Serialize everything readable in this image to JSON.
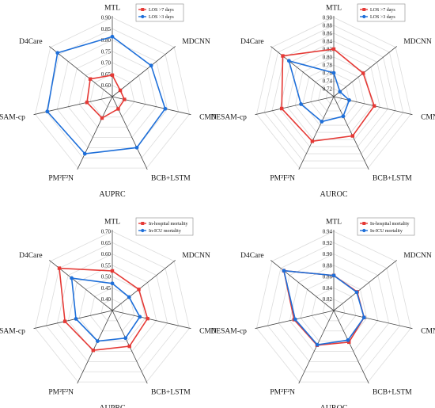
{
  "colors": {
    "red": "#e53935",
    "blue": "#1e6fd9",
    "grid": "#dcdcdc",
    "axis": "#444444"
  },
  "chart_data": [
    {
      "type": "radar",
      "title": "AUPRC",
      "axes": [
        "MTL",
        "MDCNN",
        "CMN",
        "BCB+LSTM",
        "PM²F²N",
        "DESAM-cp",
        "D4Care"
      ],
      "r_ticks": [
        "0.60",
        "0.65",
        "0.70",
        "0.75",
        "0.80",
        "0.85",
        "0.90"
      ],
      "r_range": [
        0.55,
        0.9
      ],
      "grid": true,
      "legend_position": "top-right",
      "series": [
        {
          "name": "LOS >7 days",
          "color": "#e53935",
          "values": [
            0.645,
            0.595,
            0.605,
            0.61,
            0.655,
            0.665,
            0.675
          ]
        },
        {
          "name": "LOS >3 days",
          "color": "#1e6fd9",
          "values": [
            0.815,
            0.77,
            0.79,
            0.8,
            0.83,
            0.845,
            0.86
          ]
        }
      ]
    },
    {
      "type": "radar",
      "title": "AUROC",
      "axes": [
        "MTL",
        "MDCNN",
        "CMN",
        "BCB+LSTM",
        "PM²F²N",
        "DESAM-cp",
        "D4Care"
      ],
      "r_ticks": [
        "0.72",
        "0.74",
        "0.76",
        "0.78",
        "0.80",
        "0.82",
        "0.84",
        "0.86",
        "0.88",
        "0.90"
      ],
      "r_range": [
        0.7,
        0.9
      ],
      "grid": true,
      "legend_position": "top-right",
      "series": [
        {
          "name": "LOS >7 days",
          "color": "#e53935",
          "values": [
            0.82,
            0.795,
            0.805,
            0.81,
            0.825,
            0.835,
            0.865
          ]
        },
        {
          "name": "LOS >3 days",
          "color": "#1e6fd9",
          "values": [
            0.76,
            0.72,
            0.74,
            0.755,
            0.77,
            0.785,
            0.845
          ]
        }
      ]
    },
    {
      "type": "radar",
      "title": "AUPRC",
      "axes": [
        "MTL",
        "MDCNN",
        "CMN",
        "BCB+LSTM",
        "PM²F²N",
        "DESAM-cp",
        "D4Care"
      ],
      "r_ticks": [
        "0.40",
        "0.45",
        "0.50",
        "0.55",
        "0.60",
        "0.65",
        "0.70"
      ],
      "r_range": [
        0.35,
        0.7
      ],
      "grid": true,
      "legend_position": "top-right",
      "series": [
        {
          "name": "In-hospital mortality",
          "color": "#e53935",
          "values": [
            0.525,
            0.5,
            0.51,
            0.525,
            0.545,
            0.565,
            0.65
          ]
        },
        {
          "name": "In-ICU mortality",
          "color": "#1e6fd9",
          "values": [
            0.47,
            0.445,
            0.475,
            0.485,
            0.5,
            0.515,
            0.58
          ]
        }
      ]
    },
    {
      "type": "radar",
      "title": "AUROC",
      "axes": [
        "MTL",
        "MDCNN",
        "CMN",
        "BCB+LSTM",
        "PM²F²N",
        "DESAM-cp",
        "D4Care"
      ],
      "r_ticks": [
        "0.82",
        "0.84",
        "0.86",
        "0.88",
        "0.90",
        "0.92",
        "0.94"
      ],
      "r_range": [
        0.8,
        0.94
      ],
      "grid": true,
      "legend_position": "top-right",
      "series": [
        {
          "name": "In-hospital mortality",
          "color": "#e53935",
          "values": [
            0.862,
            0.853,
            0.855,
            0.862,
            0.868,
            0.872,
            0.913
          ]
        },
        {
          "name": "In-ICU mortality",
          "color": "#1e6fd9",
          "values": [
            0.862,
            0.852,
            0.855,
            0.858,
            0.867,
            0.87,
            0.913
          ]
        }
      ]
    }
  ]
}
